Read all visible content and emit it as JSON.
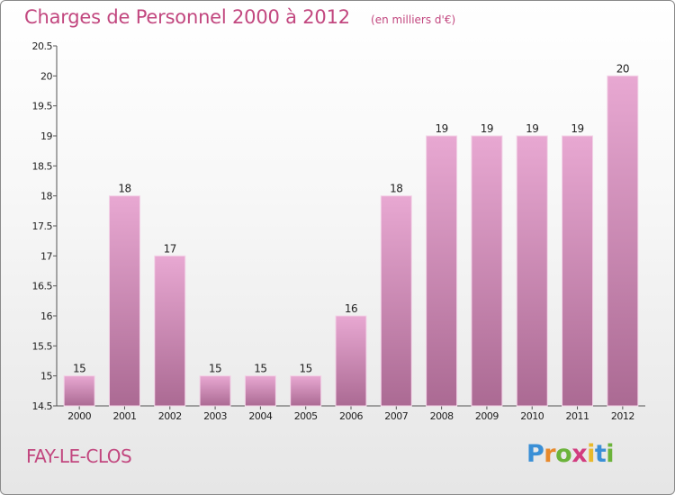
{
  "title": "Charges de Personnel 2000 à 2012",
  "subtitle": "(en milliers d'€)",
  "commune": "FAY-LE-CLOS",
  "logo": {
    "text": "Proxiti",
    "letters": [
      {
        "ch": "P",
        "color": "#3a8fd6"
      },
      {
        "ch": "r",
        "color": "#e8892b"
      },
      {
        "ch": "o",
        "color": "#6bb33a"
      },
      {
        "ch": "x",
        "color": "#d23c7f"
      },
      {
        "ch": "i",
        "color": "#e8b92b"
      },
      {
        "ch": "t",
        "color": "#3a8fd6"
      },
      {
        "ch": "i",
        "color": "#6bb33a"
      }
    ]
  },
  "colors": {
    "accent": "#c2477f",
    "bar_top": "#e8a8d2",
    "bar_bottom": "#ab6a93"
  },
  "chart_data": {
    "type": "bar",
    "title": "Charges de Personnel 2000 à 2012",
    "subtitle": "(en milliers d'€)",
    "categories": [
      "2000",
      "2001",
      "2002",
      "2003",
      "2004",
      "2005",
      "2006",
      "2007",
      "2008",
      "2009",
      "2010",
      "2011",
      "2012"
    ],
    "values": [
      15,
      18,
      17,
      15,
      15,
      15,
      16,
      18,
      19,
      19,
      19,
      19,
      20
    ],
    "ylim": [
      14.5,
      20.5
    ],
    "yticks": [
      14.5,
      15,
      15.5,
      16,
      16.5,
      17,
      17.5,
      18,
      18.5,
      19,
      19.5,
      20,
      20.5
    ],
    "ytick_labels": [
      "14.5",
      "15",
      "15.5",
      "16",
      "16.5",
      "17",
      "17.5",
      "18",
      "18.5",
      "19",
      "19.5",
      "20",
      "20.5"
    ],
    "grid": false,
    "legend": "none"
  }
}
